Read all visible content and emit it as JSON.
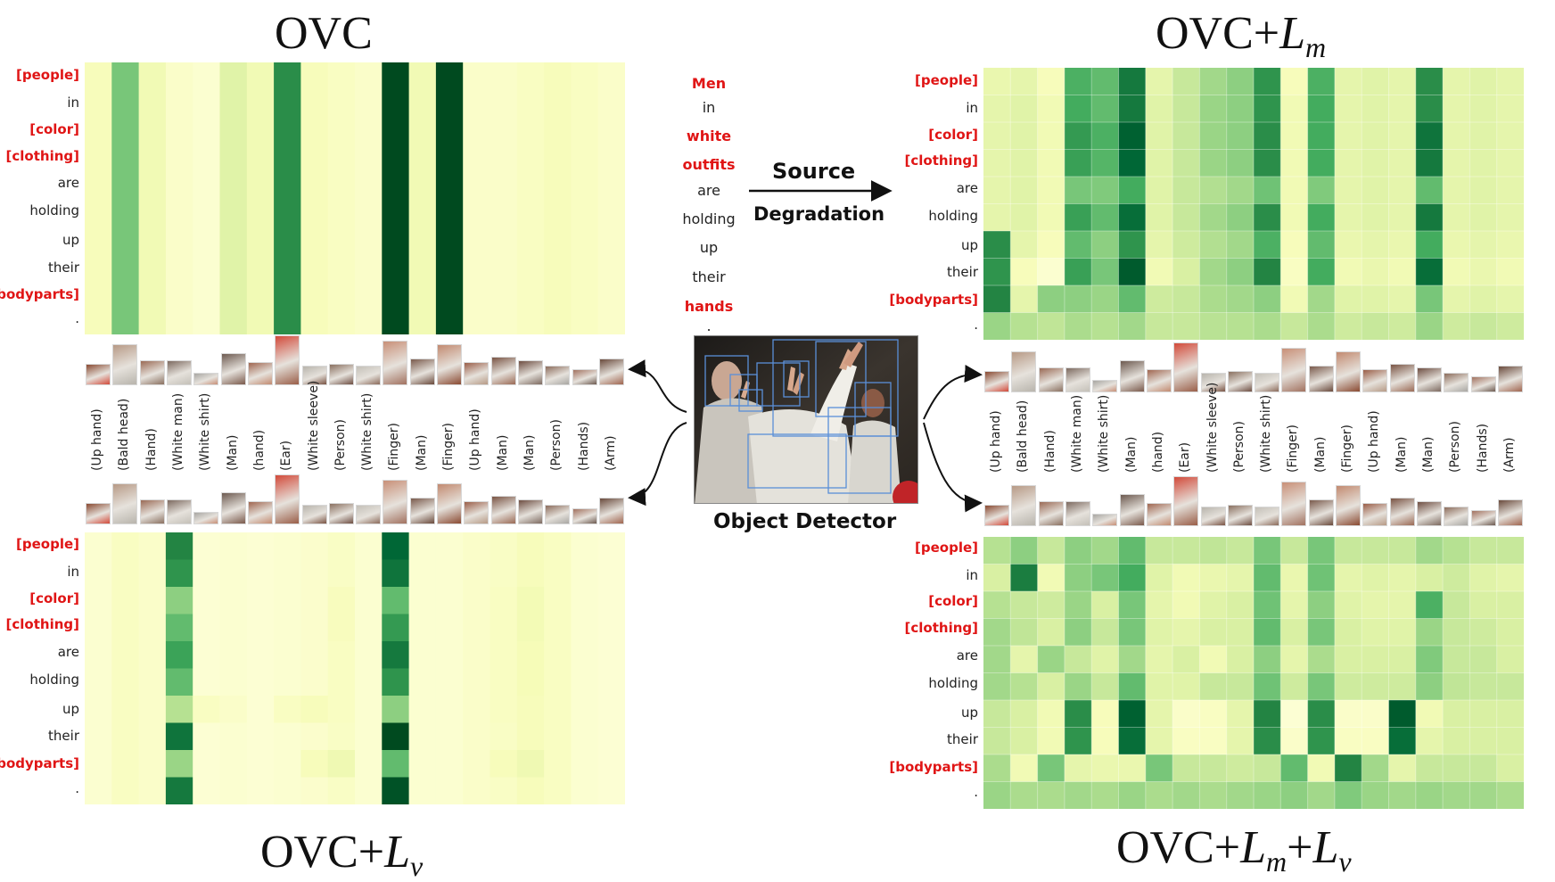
{
  "panels": {
    "top_left": {
      "title_main": "OVC",
      "title_var": "",
      "title_sub": ""
    },
    "top_right": {
      "title_main": "OVC+",
      "title_var": "L",
      "title_sub": "m"
    },
    "bottom_left": {
      "title_main": "OVC+",
      "title_var": "L",
      "title_sub": "v"
    },
    "bottom_right": {
      "title_main": "OVC+",
      "title_var": "L",
      "title_sub": "m",
      "title_main2": "+",
      "title_var2": "L",
      "title_sub2": "v"
    }
  },
  "row_labels": [
    {
      "text": "[people]",
      "highlight": true
    },
    {
      "text": "in",
      "highlight": false
    },
    {
      "text": "[color]",
      "highlight": true
    },
    {
      "text": "[clothing]",
      "highlight": true
    },
    {
      "text": "are",
      "highlight": false
    },
    {
      "text": "holding",
      "highlight": false
    },
    {
      "text": "up",
      "highlight": false
    },
    {
      "text": "their",
      "highlight": false
    },
    {
      "text": "[bodyparts]",
      "highlight": true
    },
    {
      "text": ".",
      "highlight": false
    }
  ],
  "column_labels": [
    "(Up hand)",
    "(Bald head)",
    "(Hand)",
    "(White man)",
    "(White shirt)",
    "(Man)",
    "(hand)",
    "(Ear)",
    "(White sleeve)",
    "(Person)",
    "(White shirt)",
    "(Finger)",
    "(Man)",
    "(Finger)",
    "(Up hand)",
    "(Man)",
    "(Man)",
    "(Person)",
    "(Hands)",
    "(Arm)"
  ],
  "source_sentence": [
    {
      "text": "Men",
      "highlight": true
    },
    {
      "text": "in",
      "highlight": false
    },
    {
      "text": "white",
      "highlight": true
    },
    {
      "text": "outfits",
      "highlight": true
    },
    {
      "text": "are",
      "highlight": false
    },
    {
      "text": "holding",
      "highlight": false
    },
    {
      "text": "up",
      "highlight": false
    },
    {
      "text": "their",
      "highlight": false
    },
    {
      "text": "hands",
      "highlight": true
    },
    {
      "text": ".",
      "highlight": false
    }
  ],
  "center": {
    "arrow_label_1": "Source",
    "arrow_label_2": "Degradation",
    "detector_label": "Object Detector"
  },
  "colors": {
    "highlight": "#e01515",
    "scale_low": "#ffffe5",
    "scale_high": "#00441b"
  },
  "chart_data": [
    {
      "type": "heatmap",
      "title": "OVC",
      "rows": [
        "[people]",
        "in",
        "[color]",
        "[clothing]",
        "are",
        "holding",
        "up",
        "their",
        "[bodyparts]",
        "."
      ],
      "columns": [
        "(Up hand)",
        "(Bald head)",
        "(Hand)",
        "(White man)",
        "(White shirt)",
        "(Man)",
        "(hand)",
        "(Ear)",
        "(White sleeve)",
        "(Person)",
        "(White shirt)",
        "(Finger)",
        "(Man)",
        "(Finger)",
        "(Up hand)",
        "(Man)",
        "(Man)",
        "(Person)",
        "(Hands)",
        "(Arm)"
      ],
      "values": [
        [
          0.12,
          0.5,
          0.15,
          0.08,
          0.06,
          0.22,
          0.15,
          0.72,
          0.12,
          0.1,
          0.08,
          0.98,
          0.15,
          0.98,
          0.08,
          0.08,
          0.1,
          0.12,
          0.1,
          0.08
        ],
        [
          0.12,
          0.5,
          0.15,
          0.08,
          0.06,
          0.22,
          0.15,
          0.72,
          0.12,
          0.1,
          0.08,
          0.98,
          0.15,
          0.98,
          0.08,
          0.08,
          0.1,
          0.12,
          0.1,
          0.08
        ],
        [
          0.12,
          0.5,
          0.15,
          0.08,
          0.06,
          0.22,
          0.15,
          0.72,
          0.12,
          0.1,
          0.08,
          0.98,
          0.15,
          0.98,
          0.08,
          0.08,
          0.1,
          0.12,
          0.1,
          0.08
        ],
        [
          0.12,
          0.5,
          0.15,
          0.08,
          0.06,
          0.22,
          0.15,
          0.72,
          0.12,
          0.1,
          0.08,
          0.98,
          0.15,
          0.98,
          0.08,
          0.08,
          0.1,
          0.12,
          0.1,
          0.08
        ],
        [
          0.12,
          0.5,
          0.15,
          0.08,
          0.06,
          0.22,
          0.15,
          0.72,
          0.12,
          0.1,
          0.08,
          0.98,
          0.15,
          0.98,
          0.08,
          0.08,
          0.1,
          0.12,
          0.1,
          0.08
        ],
        [
          0.12,
          0.5,
          0.15,
          0.08,
          0.06,
          0.22,
          0.15,
          0.72,
          0.12,
          0.1,
          0.08,
          0.98,
          0.15,
          0.98,
          0.08,
          0.08,
          0.1,
          0.12,
          0.1,
          0.08
        ],
        [
          0.12,
          0.5,
          0.15,
          0.08,
          0.06,
          0.22,
          0.15,
          0.72,
          0.12,
          0.1,
          0.08,
          0.98,
          0.15,
          0.98,
          0.08,
          0.08,
          0.1,
          0.12,
          0.1,
          0.08
        ],
        [
          0.12,
          0.5,
          0.15,
          0.08,
          0.06,
          0.22,
          0.15,
          0.72,
          0.12,
          0.1,
          0.08,
          0.98,
          0.15,
          0.98,
          0.08,
          0.08,
          0.1,
          0.12,
          0.1,
          0.08
        ],
        [
          0.12,
          0.5,
          0.15,
          0.08,
          0.06,
          0.22,
          0.15,
          0.72,
          0.12,
          0.1,
          0.08,
          0.98,
          0.15,
          0.98,
          0.08,
          0.08,
          0.1,
          0.12,
          0.1,
          0.08
        ],
        [
          0.12,
          0.5,
          0.15,
          0.08,
          0.06,
          0.22,
          0.15,
          0.72,
          0.12,
          0.1,
          0.08,
          0.98,
          0.15,
          0.98,
          0.08,
          0.08,
          0.1,
          0.12,
          0.1,
          0.08
        ]
      ]
    },
    {
      "type": "heatmap",
      "title": "OVC+Lm",
      "rows": [
        "[people]",
        "in",
        "[color]",
        "[clothing]",
        "are",
        "holding",
        "up",
        "their",
        "[bodyparts]",
        "."
      ],
      "columns": [
        "(Up hand)",
        "(Bald head)",
        "(Hand)",
        "(White man)",
        "(White shirt)",
        "(Man)",
        "(hand)",
        "(Ear)",
        "(White sleeve)",
        "(Person)",
        "(White shirt)",
        "(Finger)",
        "(Man)",
        "(Finger)",
        "(Up hand)",
        "(Man)",
        "(Man)",
        "(Person)",
        "(Hands)",
        "(Arm)"
      ],
      "values": [
        [
          0.18,
          0.2,
          0.12,
          0.6,
          0.55,
          0.8,
          0.2,
          0.3,
          0.4,
          0.45,
          0.7,
          0.12,
          0.6,
          0.2,
          0.22,
          0.2,
          0.72,
          0.2,
          0.22,
          0.2
        ],
        [
          0.2,
          0.22,
          0.15,
          0.62,
          0.55,
          0.8,
          0.22,
          0.3,
          0.42,
          0.45,
          0.7,
          0.15,
          0.62,
          0.2,
          0.22,
          0.2,
          0.72,
          0.2,
          0.22,
          0.2
        ],
        [
          0.2,
          0.22,
          0.15,
          0.68,
          0.6,
          0.9,
          0.22,
          0.3,
          0.42,
          0.45,
          0.72,
          0.15,
          0.62,
          0.2,
          0.22,
          0.2,
          0.82,
          0.2,
          0.22,
          0.2
        ],
        [
          0.2,
          0.22,
          0.15,
          0.66,
          0.58,
          0.88,
          0.22,
          0.3,
          0.42,
          0.45,
          0.72,
          0.15,
          0.62,
          0.2,
          0.22,
          0.2,
          0.8,
          0.2,
          0.22,
          0.2
        ],
        [
          0.2,
          0.22,
          0.15,
          0.5,
          0.48,
          0.62,
          0.22,
          0.3,
          0.36,
          0.4,
          0.52,
          0.15,
          0.48,
          0.2,
          0.22,
          0.2,
          0.55,
          0.2,
          0.22,
          0.2
        ],
        [
          0.2,
          0.22,
          0.15,
          0.66,
          0.55,
          0.85,
          0.22,
          0.3,
          0.4,
          0.45,
          0.72,
          0.15,
          0.62,
          0.2,
          0.22,
          0.2,
          0.8,
          0.2,
          0.22,
          0.2
        ],
        [
          0.72,
          0.2,
          0.12,
          0.55,
          0.45,
          0.7,
          0.2,
          0.28,
          0.36,
          0.4,
          0.6,
          0.12,
          0.55,
          0.18,
          0.2,
          0.18,
          0.62,
          0.18,
          0.2,
          0.18
        ],
        [
          0.7,
          0.12,
          0.06,
          0.66,
          0.5,
          0.92,
          0.15,
          0.25,
          0.4,
          0.45,
          0.75,
          0.1,
          0.62,
          0.15,
          0.18,
          0.15,
          0.85,
          0.15,
          0.18,
          0.15
        ],
        [
          0.75,
          0.2,
          0.45,
          0.45,
          0.42,
          0.55,
          0.28,
          0.3,
          0.38,
          0.4,
          0.45,
          0.15,
          0.4,
          0.22,
          0.22,
          0.2,
          0.5,
          0.2,
          0.22,
          0.2
        ],
        [
          0.42,
          0.35,
          0.32,
          0.38,
          0.35,
          0.4,
          0.3,
          0.3,
          0.34,
          0.35,
          0.38,
          0.3,
          0.38,
          0.28,
          0.3,
          0.28,
          0.42,
          0.28,
          0.3,
          0.28
        ]
      ]
    },
    {
      "type": "heatmap",
      "title": "OVC+Lv",
      "rows": [
        "[people]",
        "in",
        "[color]",
        "[clothing]",
        "are",
        "holding",
        "up",
        "their",
        "[bodyparts]",
        "."
      ],
      "columns": [
        "(Up hand)",
        "(Bald head)",
        "(Hand)",
        "(White man)",
        "(White shirt)",
        "(Man)",
        "(hand)",
        "(Ear)",
        "(White sleeve)",
        "(Person)",
        "(White shirt)",
        "(Finger)",
        "(Man)",
        "(Finger)",
        "(Up hand)",
        "(Man)",
        "(Man)",
        "(Person)",
        "(Hands)",
        "(Arm)"
      ],
      "values": [
        [
          0.06,
          0.1,
          0.08,
          0.75,
          0.05,
          0.06,
          0.05,
          0.06,
          0.07,
          0.09,
          0.06,
          0.88,
          0.06,
          0.06,
          0.08,
          0.09,
          0.12,
          0.1,
          0.06,
          0.05
        ],
        [
          0.06,
          0.1,
          0.08,
          0.7,
          0.05,
          0.06,
          0.05,
          0.06,
          0.07,
          0.09,
          0.06,
          0.82,
          0.06,
          0.06,
          0.08,
          0.09,
          0.12,
          0.1,
          0.06,
          0.05
        ],
        [
          0.06,
          0.1,
          0.08,
          0.45,
          0.05,
          0.06,
          0.05,
          0.06,
          0.07,
          0.11,
          0.06,
          0.55,
          0.06,
          0.06,
          0.08,
          0.1,
          0.14,
          0.1,
          0.06,
          0.05
        ],
        [
          0.06,
          0.1,
          0.08,
          0.55,
          0.05,
          0.06,
          0.05,
          0.06,
          0.07,
          0.11,
          0.06,
          0.68,
          0.06,
          0.06,
          0.08,
          0.1,
          0.14,
          0.1,
          0.06,
          0.05
        ],
        [
          0.06,
          0.1,
          0.08,
          0.65,
          0.05,
          0.06,
          0.05,
          0.06,
          0.07,
          0.1,
          0.06,
          0.8,
          0.06,
          0.06,
          0.08,
          0.1,
          0.13,
          0.1,
          0.06,
          0.05
        ],
        [
          0.06,
          0.1,
          0.08,
          0.55,
          0.05,
          0.06,
          0.05,
          0.06,
          0.07,
          0.1,
          0.06,
          0.7,
          0.06,
          0.06,
          0.08,
          0.1,
          0.13,
          0.1,
          0.06,
          0.05
        ],
        [
          0.06,
          0.1,
          0.08,
          0.35,
          0.1,
          0.08,
          0.05,
          0.1,
          0.12,
          0.1,
          0.06,
          0.45,
          0.06,
          0.06,
          0.08,
          0.1,
          0.12,
          0.1,
          0.06,
          0.05
        ],
        [
          0.06,
          0.1,
          0.08,
          0.82,
          0.05,
          0.06,
          0.05,
          0.06,
          0.07,
          0.09,
          0.06,
          0.98,
          0.06,
          0.06,
          0.08,
          0.09,
          0.12,
          0.1,
          0.06,
          0.05
        ],
        [
          0.06,
          0.1,
          0.08,
          0.42,
          0.05,
          0.06,
          0.05,
          0.06,
          0.12,
          0.16,
          0.06,
          0.55,
          0.06,
          0.06,
          0.08,
          0.12,
          0.16,
          0.1,
          0.06,
          0.05
        ],
        [
          0.06,
          0.1,
          0.08,
          0.8,
          0.05,
          0.06,
          0.05,
          0.06,
          0.07,
          0.09,
          0.06,
          0.95,
          0.06,
          0.06,
          0.08,
          0.09,
          0.12,
          0.1,
          0.06,
          0.05
        ]
      ]
    },
    {
      "type": "heatmap",
      "title": "OVC+Lm+Lv",
      "rows": [
        "[people]",
        "in",
        "[color]",
        "[clothing]",
        "are",
        "holding",
        "up",
        "their",
        "[bodyparts]",
        "."
      ],
      "columns": [
        "(Up hand)",
        "(Bald head)",
        "(Hand)",
        "(White man)",
        "(White shirt)",
        "(Man)",
        "(hand)",
        "(Ear)",
        "(White sleeve)",
        "(Person)",
        "(White shirt)",
        "(Finger)",
        "(Man)",
        "(Finger)",
        "(Up hand)",
        "(Man)",
        "(Man)",
        "(Person)",
        "(Hands)",
        "(Arm)"
      ],
      "values": [
        [
          0.35,
          0.45,
          0.3,
          0.45,
          0.4,
          0.55,
          0.3,
          0.3,
          0.32,
          0.3,
          0.5,
          0.3,
          0.5,
          0.3,
          0.3,
          0.3,
          0.4,
          0.35,
          0.3,
          0.3
        ],
        [
          0.25,
          0.78,
          0.15,
          0.45,
          0.5,
          0.62,
          0.22,
          0.15,
          0.18,
          0.2,
          0.55,
          0.18,
          0.52,
          0.2,
          0.22,
          0.2,
          0.25,
          0.28,
          0.22,
          0.2
        ],
        [
          0.35,
          0.3,
          0.28,
          0.42,
          0.25,
          0.5,
          0.2,
          0.15,
          0.22,
          0.25,
          0.52,
          0.2,
          0.45,
          0.22,
          0.2,
          0.2,
          0.6,
          0.3,
          0.25,
          0.25
        ],
        [
          0.4,
          0.32,
          0.25,
          0.45,
          0.3,
          0.5,
          0.22,
          0.2,
          0.25,
          0.25,
          0.55,
          0.25,
          0.5,
          0.25,
          0.22,
          0.22,
          0.42,
          0.3,
          0.28,
          0.25
        ],
        [
          0.4,
          0.2,
          0.42,
          0.3,
          0.22,
          0.4,
          0.2,
          0.25,
          0.15,
          0.25,
          0.45,
          0.2,
          0.38,
          0.25,
          0.25,
          0.25,
          0.48,
          0.3,
          0.3,
          0.25
        ],
        [
          0.4,
          0.35,
          0.25,
          0.42,
          0.3,
          0.55,
          0.22,
          0.22,
          0.3,
          0.3,
          0.52,
          0.28,
          0.5,
          0.28,
          0.28,
          0.28,
          0.45,
          0.32,
          0.3,
          0.3
        ],
        [
          0.3,
          0.25,
          0.15,
          0.72,
          0.12,
          0.9,
          0.2,
          0.08,
          0.1,
          0.2,
          0.75,
          0.05,
          0.72,
          0.08,
          0.08,
          0.92,
          0.15,
          0.25,
          0.25,
          0.25
        ],
        [
          0.3,
          0.25,
          0.15,
          0.7,
          0.12,
          0.85,
          0.2,
          0.1,
          0.1,
          0.2,
          0.72,
          0.08,
          0.7,
          0.1,
          0.1,
          0.85,
          0.2,
          0.25,
          0.25,
          0.25
        ],
        [
          0.38,
          0.15,
          0.5,
          0.2,
          0.18,
          0.18,
          0.5,
          0.3,
          0.3,
          0.28,
          0.3,
          0.55,
          0.15,
          0.75,
          0.4,
          0.2,
          0.3,
          0.3,
          0.3,
          0.25
        ],
        [
          0.42,
          0.38,
          0.38,
          0.4,
          0.38,
          0.42,
          0.38,
          0.4,
          0.38,
          0.4,
          0.42,
          0.45,
          0.4,
          0.48,
          0.42,
          0.4,
          0.42,
          0.4,
          0.4,
          0.38
        ]
      ]
    }
  ]
}
